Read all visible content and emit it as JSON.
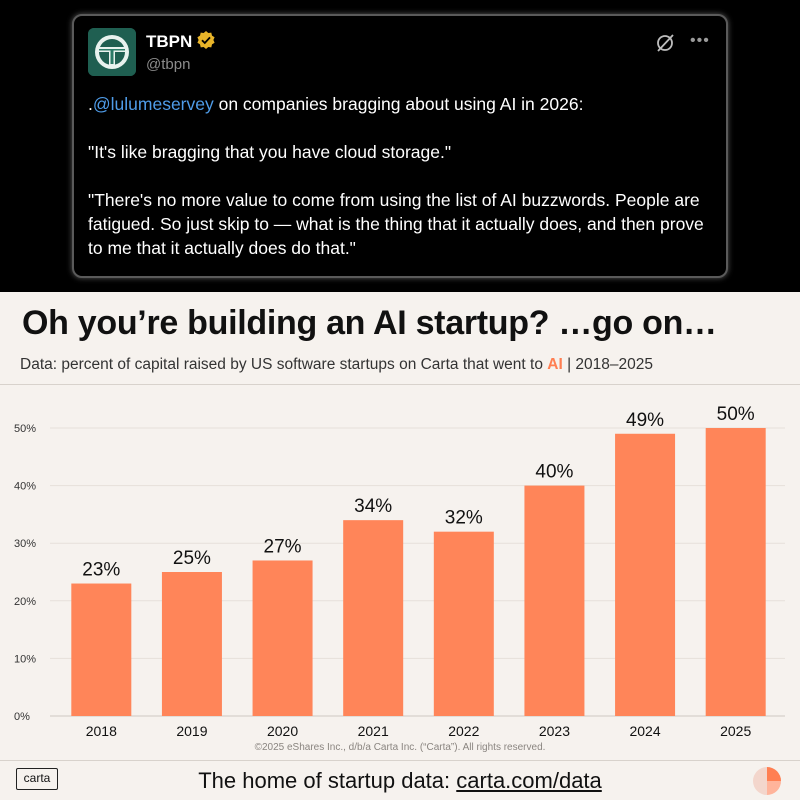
{
  "tweet": {
    "name": "TBPN",
    "handle": "@tbpn",
    "prefix": ".",
    "mention": "@lulumeservey",
    "line1_rest": " on companies bragging about using AI in 2026:",
    "quote1": "\"It's like bragging that you have cloud storage.\"",
    "quote2": "\"There's no more value to come from using the list of AI buzzwords. People are fatigued. So just skip to — what is the thing that it actually does, and then prove to me that it actually does do that.\"",
    "more_icon": "•••"
  },
  "headline": "Oh you’re building an AI startup? …go on…",
  "subtitle": {
    "before": "Data: percent of capital raised by US software startups on Carta that went to ",
    "highlight": "AI",
    "after": " | 2018–2025"
  },
  "chart_data": {
    "type": "bar",
    "categories": [
      "2018",
      "2019",
      "2020",
      "2021",
      "2022",
      "2023",
      "2024",
      "2025"
    ],
    "values": [
      23,
      25,
      27,
      34,
      32,
      40,
      49,
      50
    ],
    "value_labels": [
      "23%",
      "25%",
      "27%",
      "34%",
      "32%",
      "40%",
      "49%",
      "50%"
    ],
    "yticks": [
      0,
      10,
      20,
      30,
      40,
      50
    ],
    "ytick_labels": [
      "0%",
      "10%",
      "20%",
      "30%",
      "40%",
      "50%"
    ],
    "ylim": [
      0,
      50
    ],
    "grid": true,
    "bar_color": "#ff8559",
    "xlabel": "",
    "ylabel": ""
  },
  "copyright": "©2025 eShares Inc., d/b/a Carta Inc. (“Carta”). All rights reserved.",
  "footer": {
    "brand": "carta",
    "text": "The home of startup data: ",
    "link": "carta.com/data"
  },
  "colors": {
    "accent": "#ff7f52",
    "mention": "#4f9ce8",
    "background": "#f6f2ee"
  }
}
